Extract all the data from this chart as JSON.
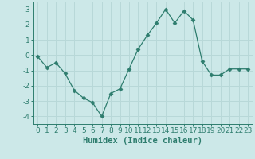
{
  "x": [
    0,
    1,
    2,
    3,
    4,
    5,
    6,
    7,
    8,
    9,
    10,
    11,
    12,
    13,
    14,
    15,
    16,
    17,
    18,
    19,
    20,
    21,
    22,
    23
  ],
  "y": [
    -0.1,
    -0.8,
    -0.5,
    -1.2,
    -2.3,
    -2.8,
    -3.1,
    -4.0,
    -2.5,
    -2.2,
    -0.9,
    0.4,
    1.3,
    2.1,
    3.0,
    2.1,
    2.9,
    2.3,
    -0.4,
    -1.3,
    -1.3,
    -0.9,
    -0.9,
    -0.9
  ],
  "line_color": "#2e7d6e",
  "marker": "D",
  "marker_size": 2.5,
  "background_color": "#cce8e8",
  "grid_color": "#b8d8d8",
  "xlabel": "Humidex (Indice chaleur)",
  "xlim": [
    -0.5,
    23.5
  ],
  "ylim": [
    -4.5,
    3.5
  ],
  "yticks": [
    -4,
    -3,
    -2,
    -1,
    0,
    1,
    2,
    3
  ],
  "xticks": [
    0,
    1,
    2,
    3,
    4,
    5,
    6,
    7,
    8,
    9,
    10,
    11,
    12,
    13,
    14,
    15,
    16,
    17,
    18,
    19,
    20,
    21,
    22,
    23
  ],
  "tick_color": "#2e7d6e",
  "label_fontsize": 7.5,
  "tick_fontsize": 6.5
}
